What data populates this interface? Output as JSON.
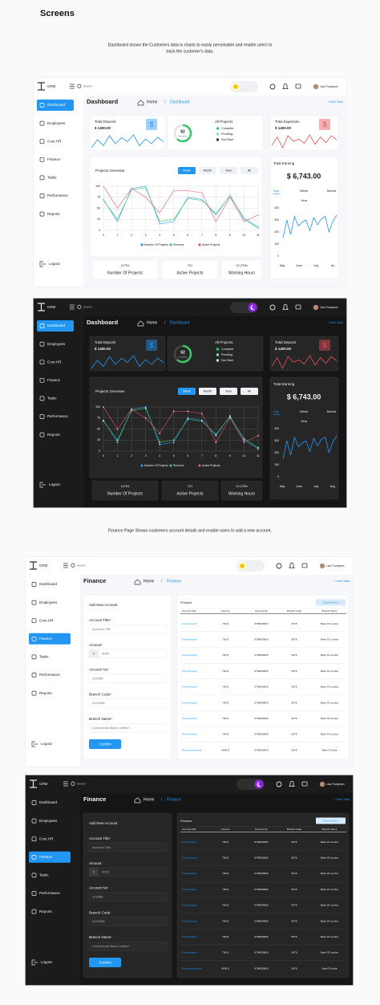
{
  "title": "Screens",
  "sections": [
    {
      "caption": [
        "Dashboard shows the Customers data in charts to easily perceivable and enable users to",
        "track the customer's data."
      ],
      "screens": [
        {
          "type": "dashboard",
          "theme": "light",
          "brand": "CRM",
          "search": "Search",
          "user": "Lisa Thompson",
          "nav": [
            "Dashboard",
            "Employees",
            "Core HR",
            "Finance",
            "Tasks",
            "Performance",
            "Reports"
          ],
          "active": 0,
          "logout": "Logout",
          "page_title": "Dashboard",
          "breadcrumb": [
            "Home",
            "/",
            "Dashboard"
          ],
          "action": "+ Add Task",
          "cards": [
            {
              "title": "Total Deposit",
              "value": "$ 1400.00",
              "icon": "$",
              "color": "#2196f3",
              "trend": [
                30,
                50,
                35,
                60,
                40,
                55,
                45,
                62,
                35,
                52,
                40,
                56,
                45
              ]
            },
            {
              "title": "Total Expenses",
              "value": "$ 1400.00",
              "icon": "$",
              "color": "#e8505b",
              "trend": [
                35,
                55,
                30,
                58,
                45,
                50,
                40,
                60,
                38,
                55,
                42,
                58,
                48
              ]
            }
          ],
          "projects": {
            "title": "All Projects",
            "center_value": 62,
            "center_label": "Complete",
            "color": "#3cc46b",
            "legend": [
              {
                "name": "Compete",
                "color": "#3cc46b"
              },
              {
                "name": "Pending",
                "color": "#8fdcae"
              },
              {
                "name": "Not Start",
                "color": "#333333"
              }
            ]
          },
          "overview": {
            "title": "Projects Overview",
            "tabs": [
              "Week",
              "Month",
              "Year",
              "All"
            ],
            "x": [
              0,
              1,
              2,
              3,
              4,
              5,
              6,
              7,
              8,
              9,
              10,
              11
            ],
            "ylim": [
              0,
              100
            ],
            "yticks": [
              0,
              25,
              50,
              75,
              100
            ],
            "grid": true,
            "series": [
              {
                "name": "Number Of Projects",
                "color": "#2196f3",
                "values": [
                  70,
                  20,
                  95,
                  100,
                  15,
                  20,
                  75,
                  70,
                  35,
                  80,
                  25,
                  5
                ]
              },
              {
                "name": "Revenue",
                "color": "#3cc46b",
                "values": [
                  68,
                  25,
                  92,
                  97,
                  20,
                  25,
                  72,
                  68,
                  38,
                  78,
                  28,
                  8
                ]
              },
              {
                "name": "Active Projects",
                "color": "#f0506e",
                "values": [
                  100,
                  50,
                  95,
                  75,
                  40,
                  90,
                  90,
                  85,
                  20,
                  75,
                  20,
                  35
                ]
              }
            ]
          },
          "earning": {
            "title": "Total Earning",
            "value": "$ 6,743.00",
            "tabs": [
              "Day",
              "Week",
              "Month"
            ],
            "sub": "Year",
            "ylim": [
              0,
              400
            ],
            "yticks": [
              0,
              100,
              200,
              300,
              400
            ],
            "months": [
              "May",
              "June",
              "July",
              "Au"
            ],
            "color": "#2196f3",
            "values": [
              150,
              300,
              180,
              330,
              250,
              280,
              300,
              210,
              320,
              260,
              310,
              330,
              200,
              290,
              340
            ]
          },
          "stats": [
            {
              "value": "12751",
              "label": "Number Of Projects"
            },
            {
              "value": "721",
              "label": "Active Projects"
            },
            {
              "value": "12,275h",
              "label": "Working Hours"
            }
          ]
        },
        {
          "type": "dashboard",
          "theme": "dark",
          "brand": "CRM",
          "search": "Search",
          "user": "Lisa Thompson",
          "nav": [
            "Dashboard",
            "Employees",
            "Core HR",
            "Finance",
            "Tasks",
            "Performance",
            "Reports"
          ],
          "active": 0,
          "logout": "Logout",
          "page_title": "Dashboard",
          "breadcrumb": [
            "Home",
            "/",
            "Dashboard"
          ],
          "action": "+ Add Task",
          "cards": [
            {
              "title": "Total Deposit",
              "value": "$ 1400.00",
              "icon": "$",
              "color": "#2196f3",
              "trend": [
                30,
                50,
                35,
                60,
                40,
                55,
                45,
                62,
                35,
                52,
                40,
                56,
                45
              ]
            },
            {
              "title": "Total Deposit",
              "value": "$ 1400.00",
              "icon": "$",
              "color": "#e8505b",
              "trend": [
                35,
                55,
                30,
                58,
                45,
                50,
                40,
                60,
                38,
                55,
                42,
                58,
                48
              ]
            }
          ],
          "projects": {
            "title": "All Projects",
            "center_value": 62,
            "center_label": "Complete",
            "color": "#3cc46b",
            "legend": [
              {
                "name": "Compete",
                "color": "#3cc46b"
              },
              {
                "name": "Pending",
                "color": "#8fdcae"
              },
              {
                "name": "Not Start",
                "color": "#dddddd"
              }
            ]
          },
          "overview": {
            "title": "Projects Overview",
            "tabs": [
              "Week",
              "Month",
              "Year",
              "All"
            ],
            "x": [
              0,
              1,
              2,
              3,
              4,
              5,
              6,
              7,
              8,
              9,
              10,
              11
            ],
            "ylim": [
              0,
              100
            ],
            "yticks": [
              0,
              25,
              50,
              75,
              100
            ],
            "grid": true,
            "series": [
              {
                "name": "Number Of Projects",
                "color": "#2196f3",
                "values": [
                  70,
                  20,
                  95,
                  100,
                  15,
                  20,
                  75,
                  70,
                  35,
                  80,
                  25,
                  5
                ]
              },
              {
                "name": "Revenue",
                "color": "#3cc46b",
                "values": [
                  68,
                  25,
                  92,
                  97,
                  20,
                  25,
                  72,
                  68,
                  38,
                  78,
                  28,
                  8
                ]
              },
              {
                "name": "Active Projects",
                "color": "#f0506e",
                "values": [
                  100,
                  50,
                  95,
                  75,
                  40,
                  90,
                  90,
                  85,
                  20,
                  75,
                  20,
                  35
                ]
              }
            ]
          },
          "earning": {
            "title": "Total Earning",
            "value": "$ 6,743.00",
            "tabs": [
              "Day",
              "Week",
              "Month"
            ],
            "sub": "Year",
            "ylim": [
              0,
              400
            ],
            "yticks": [
              0,
              100,
              200,
              300,
              400
            ],
            "months": [
              "May",
              "June",
              "July",
              "Aug"
            ],
            "color": "#2196f3",
            "values": [
              150,
              300,
              180,
              330,
              250,
              280,
              300,
              210,
              320,
              260,
              310,
              330,
              200,
              290,
              340
            ]
          },
          "stats": [
            {
              "value": "12751",
              "label": "Number Of Projects"
            },
            {
              "value": "721",
              "label": "Active Projects"
            },
            {
              "value": "12,275h",
              "label": "Working Hours"
            }
          ]
        }
      ]
    },
    {
      "caption": [
        "Finance Page Shows customers account details and enable users to add a new account."
      ],
      "screens": [
        {
          "type": "finance",
          "theme": "light",
          "brand": "CRM",
          "search": "Search",
          "user": "Lisa Thompson",
          "nav": [
            "Dashboard",
            "Employees",
            "Core HR",
            "Finance",
            "Tasks",
            "Performance",
            "Reports"
          ],
          "active": 3,
          "logout": "Logout",
          "page_title": "Finance",
          "breadcrumb": [
            "Home",
            "/",
            "Finance"
          ],
          "action": "+ Add Task",
          "form": {
            "title": "Add New Account",
            "fields": [
              {
                "label": "Account Title",
                "mark": "*",
                "placeholder": "Account Title"
              },
              {
                "label": "Amount",
                "mark": "*",
                "prefix": "$",
                "placeholder": "4000"
              },
              {
                "label": "Account No",
                "mark": "*",
                "placeholder": "123456"
              },
              {
                "label": "Branch Code",
                "mark": "*",
                "placeholder": "#123456"
              },
              {
                "label": "Branch Name",
                "mark": "*",
                "placeholder": "Commercial Bank Limited"
              }
            ],
            "submit": "Confirm"
          },
          "table": {
            "title": "Finance",
            "export": "Export Report",
            "columns": [
              "Account Title",
              "Amount",
              "Account No",
              "Branch Code",
              "Branch Name"
            ],
            "rows": [
              [
                "Fixed deposit",
                "700 $",
                "6789000000",
                "5678",
                "Bank Of London"
              ],
              [
                "Fixed deposit",
                "700 $",
                "6789000000",
                "5678",
                "Bank Of London"
              ],
              [
                "Fixed deposit",
                "700 $",
                "6789000000",
                "5678",
                "Bank Of London"
              ],
              [
                "Fixed deposit",
                "700 $",
                "6789000000",
                "5678",
                "Bank Of London"
              ],
              [
                "Fixed deposit",
                "700 $",
                "6789000000",
                "5678",
                "Bank Of London"
              ],
              [
                "Fixed deposit",
                "700 $",
                "6789000000",
                "5678",
                "Bank Of London"
              ],
              [
                "Fixed deposit",
                "700 $",
                "6789000000",
                "5678",
                "Bank Of London"
              ],
              [
                "Fixed deposit",
                "700 $",
                "6789000000",
                "5678",
                "Bank Of London"
              ],
              [
                "Recurring deposit",
                "6000 $",
                "6789000000",
                "5678",
                "Bank Of India"
              ]
            ]
          }
        },
        {
          "type": "finance",
          "theme": "dark",
          "brand": "CRM",
          "search": "Search",
          "user": "Lisa Thompson",
          "nav": [
            "Dashboard",
            "Employees",
            "Core HR",
            "Finance",
            "Tasks",
            "Performance",
            "Reports"
          ],
          "active": 3,
          "logout": "Logout",
          "page_title": "Finance",
          "breadcrumb": [
            "Home",
            "/",
            "Finance"
          ],
          "action": "+ Add Task",
          "form": {
            "title": "Add New Account",
            "fields": [
              {
                "label": "Account Title",
                "mark": "*",
                "placeholder": "Account Title"
              },
              {
                "label": "Amount",
                "mark": "*",
                "prefix": "$",
                "placeholder": "4000"
              },
              {
                "label": "Account No",
                "mark": "*",
                "placeholder": "123456"
              },
              {
                "label": "Branch Code",
                "mark": "*",
                "placeholder": "#123456"
              },
              {
                "label": "Branch Name",
                "mark": "*",
                "placeholder": "Commercial Bank Limited"
              }
            ],
            "submit": "Confirm"
          },
          "table": {
            "title": "Finance",
            "export": "Export Report",
            "columns": [
              "Account Title",
              "Amount",
              "Account No",
              "Branch Code",
              "Branch Name"
            ],
            "rows": [
              [
                "Fixed deposit",
                "700 $",
                "6789000000",
                "5678",
                "Bank Of London"
              ],
              [
                "Fixed deposit",
                "700 $",
                "6789000000",
                "5678",
                "Bank Of London"
              ],
              [
                "Fixed deposit",
                "700 $",
                "6789000000",
                "5678",
                "Bank Of London"
              ],
              [
                "Fixed deposit",
                "700 $",
                "6789000000",
                "5678",
                "Bank Of London"
              ],
              [
                "Fixed deposit",
                "700 $",
                "6789000000",
                "5678",
                "Bank Of London"
              ],
              [
                "Fixed deposit",
                "700 $",
                "6789000000",
                "5678",
                "Bank Of London"
              ],
              [
                "Fixed deposit",
                "700 $",
                "6789000000",
                "5678",
                "Bank Of London"
              ],
              [
                "Fixed deposit",
                "700 $",
                "6789000000",
                "5678",
                "Bank Of London"
              ],
              [
                "Recurring deposit",
                "6000 $",
                "6789000000",
                "5678",
                "Bank Of India"
              ]
            ]
          }
        }
      ]
    }
  ]
}
